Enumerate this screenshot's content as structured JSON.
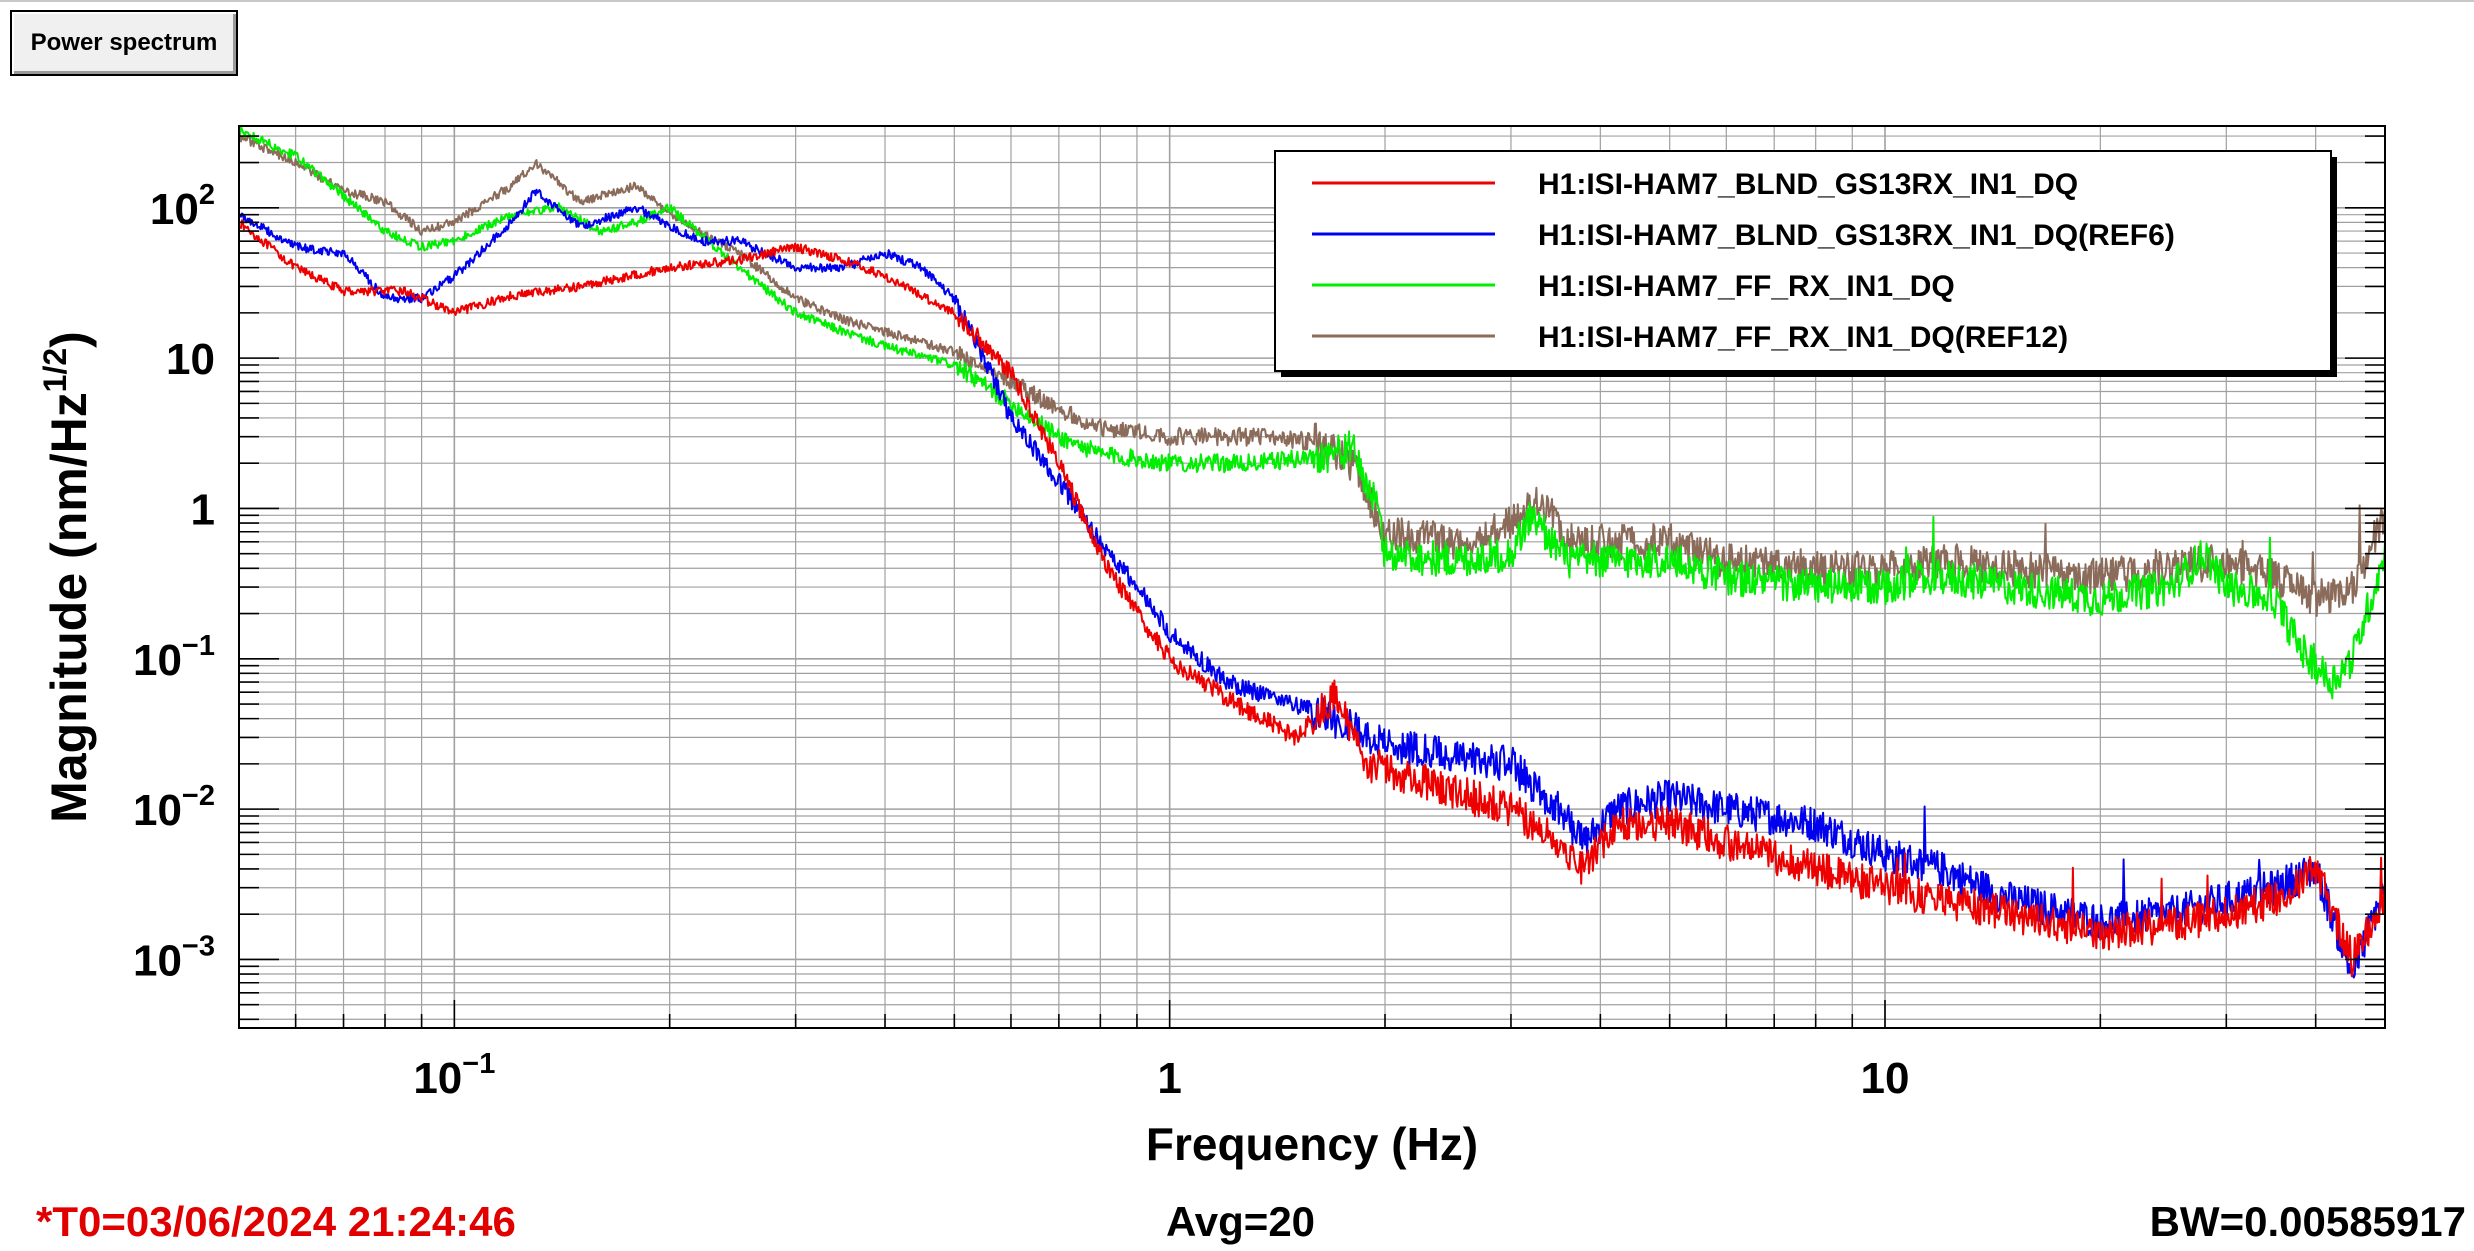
{
  "tab": {
    "label": "Power spectrum"
  },
  "status": {
    "t0": "*T0=03/06/2024 21:24:46",
    "avg": "Avg=20",
    "bw": "BW=0.00585917"
  },
  "colors": {
    "red": "#ee0000",
    "blue": "#0000ee",
    "green": "#00ee00",
    "brown": "#8b6b5a"
  },
  "chart_data": {
    "type": "line",
    "xlabel": "Frequency (Hz)",
    "ylabel": "Magnitude (nm/Hz^1/2)",
    "xscale": "log",
    "yscale": "log",
    "xlim": [
      0.05,
      50
    ],
    "ylim": [
      0.00035,
      350
    ],
    "grid": true,
    "legend_position": "top-right",
    "x_ticks": [
      {
        "value": 0.1,
        "base": "10",
        "exp": "−1"
      },
      {
        "value": 1,
        "base": "1",
        "exp": ""
      },
      {
        "value": 10,
        "base": "10",
        "exp": ""
      }
    ],
    "y_ticks": [
      {
        "value": 100,
        "base": "10",
        "exp": "2"
      },
      {
        "value": 10,
        "base": "10",
        "exp": ""
      },
      {
        "value": 1,
        "base": "1",
        "exp": ""
      },
      {
        "value": 0.1,
        "base": "10",
        "exp": "−1"
      },
      {
        "value": 0.01,
        "base": "10",
        "exp": "−2"
      },
      {
        "value": 0.001,
        "base": "10",
        "exp": "−3"
      }
    ],
    "series": [
      {
        "name": "H1:ISI-HAM7_BLND_GS13RX_IN1_DQ",
        "color": "#ee0000",
        "points": [
          [
            0.05,
            80
          ],
          [
            0.06,
            40
          ],
          [
            0.07,
            28
          ],
          [
            0.085,
            28
          ],
          [
            0.1,
            20
          ],
          [
            0.12,
            26
          ],
          [
            0.15,
            30
          ],
          [
            0.2,
            40
          ],
          [
            0.25,
            45
          ],
          [
            0.3,
            55
          ],
          [
            0.35,
            45
          ],
          [
            0.4,
            35
          ],
          [
            0.5,
            20
          ],
          [
            0.6,
            8
          ],
          [
            0.7,
            2
          ],
          [
            0.8,
            0.5
          ],
          [
            0.9,
            0.2
          ],
          [
            1,
            0.1
          ],
          [
            1.2,
            0.055
          ],
          [
            1.5,
            0.03
          ],
          [
            1.7,
            0.055
          ],
          [
            1.9,
            0.02
          ],
          [
            2.5,
            0.013
          ],
          [
            3,
            0.01
          ],
          [
            3.5,
            0.006
          ],
          [
            3.8,
            0.004
          ],
          [
            4.2,
            0.008
          ],
          [
            5,
            0.008
          ],
          [
            6,
            0.006
          ],
          [
            8,
            0.004
          ],
          [
            10,
            0.003
          ],
          [
            12,
            0.0025
          ],
          [
            15,
            0.002
          ],
          [
            20,
            0.0015
          ],
          [
            25,
            0.0017
          ],
          [
            30,
            0.002
          ],
          [
            35,
            0.0025
          ],
          [
            40,
            0.004
          ],
          [
            45,
            0.001
          ],
          [
            50,
            0.0025
          ]
        ]
      },
      {
        "name": "H1:ISI-HAM7_BLND_GS13RX_IN1_DQ(REF6)",
        "color": "#0000ee",
        "points": [
          [
            0.05,
            90
          ],
          [
            0.06,
            55
          ],
          [
            0.07,
            50
          ],
          [
            0.08,
            25
          ],
          [
            0.09,
            25
          ],
          [
            0.1,
            35
          ],
          [
            0.12,
            80
          ],
          [
            0.13,
            130
          ],
          [
            0.15,
            75
          ],
          [
            0.18,
            100
          ],
          [
            0.22,
            60
          ],
          [
            0.25,
            60
          ],
          [
            0.3,
            40
          ],
          [
            0.35,
            40
          ],
          [
            0.4,
            50
          ],
          [
            0.45,
            40
          ],
          [
            0.5,
            25
          ],
          [
            0.55,
            10
          ],
          [
            0.6,
            4
          ],
          [
            0.7,
            1.5
          ],
          [
            0.8,
            0.6
          ],
          [
            0.9,
            0.3
          ],
          [
            1,
            0.15
          ],
          [
            1.2,
            0.07
          ],
          [
            1.5,
            0.05
          ],
          [
            2,
            0.028
          ],
          [
            2.5,
            0.022
          ],
          [
            3,
            0.02
          ],
          [
            3.5,
            0.01
          ],
          [
            3.8,
            0.006
          ],
          [
            4.2,
            0.01
          ],
          [
            5,
            0.012
          ],
          [
            6,
            0.01
          ],
          [
            8,
            0.008
          ],
          [
            10,
            0.005
          ],
          [
            12,
            0.004
          ],
          [
            15,
            0.0025
          ],
          [
            20,
            0.0018
          ],
          [
            25,
            0.002
          ],
          [
            30,
            0.0025
          ],
          [
            35,
            0.003
          ],
          [
            40,
            0.004
          ],
          [
            45,
            0.0008
          ],
          [
            50,
            0.003
          ]
        ]
      },
      {
        "name": "H1:ISI-HAM7_FF_RX_IN1_DQ",
        "color": "#00ee00",
        "points": [
          [
            0.05,
            330
          ],
          [
            0.06,
            220
          ],
          [
            0.07,
            120
          ],
          [
            0.08,
            70
          ],
          [
            0.09,
            55
          ],
          [
            0.1,
            60
          ],
          [
            0.12,
            90
          ],
          [
            0.14,
            100
          ],
          [
            0.16,
            70
          ],
          [
            0.18,
            80
          ],
          [
            0.2,
            100
          ],
          [
            0.25,
            40
          ],
          [
            0.3,
            20
          ],
          [
            0.35,
            15
          ],
          [
            0.4,
            12
          ],
          [
            0.5,
            9
          ],
          [
            0.6,
            5
          ],
          [
            0.7,
            3
          ],
          [
            0.8,
            2.3
          ],
          [
            1,
            2
          ],
          [
            1.3,
            2
          ],
          [
            1.6,
            2.2
          ],
          [
            1.8,
            2.5
          ],
          [
            1.95,
            1
          ],
          [
            2,
            0.5
          ],
          [
            2.5,
            0.45
          ],
          [
            3,
            0.5
          ],
          [
            3.2,
            0.9
          ],
          [
            3.6,
            0.45
          ],
          [
            4,
            0.45
          ],
          [
            5,
            0.45
          ],
          [
            6,
            0.35
          ],
          [
            8,
            0.3
          ],
          [
            10,
            0.3
          ],
          [
            12,
            0.35
          ],
          [
            15,
            0.3
          ],
          [
            20,
            0.25
          ],
          [
            25,
            0.3
          ],
          [
            28,
            0.5
          ],
          [
            30,
            0.3
          ],
          [
            35,
            0.25
          ],
          [
            38,
            0.12
          ],
          [
            42,
            0.07
          ],
          [
            45,
            0.1
          ],
          [
            50,
            0.5
          ]
        ]
      },
      {
        "name": "H1:ISI-HAM7_FF_RX_IN1_DQ(REF12)",
        "color": "#8b6b5a",
        "points": [
          [
            0.05,
            300
          ],
          [
            0.06,
            200
          ],
          [
            0.07,
            130
          ],
          [
            0.08,
            110
          ],
          [
            0.09,
            70
          ],
          [
            0.1,
            80
          ],
          [
            0.12,
            140
          ],
          [
            0.13,
            200
          ],
          [
            0.15,
            110
          ],
          [
            0.18,
            140
          ],
          [
            0.2,
            90
          ],
          [
            0.25,
            50
          ],
          [
            0.3,
            25
          ],
          [
            0.35,
            18
          ],
          [
            0.4,
            15
          ],
          [
            0.5,
            11
          ],
          [
            0.6,
            7
          ],
          [
            0.7,
            4.5
          ],
          [
            0.8,
            3.5
          ],
          [
            1,
            3
          ],
          [
            1.3,
            3
          ],
          [
            1.6,
            2.8
          ],
          [
            1.8,
            2
          ],
          [
            2,
            0.7
          ],
          [
            2.5,
            0.6
          ],
          [
            3,
            0.8
          ],
          [
            3.3,
            1.2
          ],
          [
            3.6,
            0.6
          ],
          [
            4,
            0.6
          ],
          [
            5,
            0.6
          ],
          [
            6,
            0.45
          ],
          [
            8,
            0.4
          ],
          [
            10,
            0.4
          ],
          [
            12,
            0.45
          ],
          [
            15,
            0.4
          ],
          [
            20,
            0.35
          ],
          [
            25,
            0.4
          ],
          [
            30,
            0.45
          ],
          [
            35,
            0.35
          ],
          [
            40,
            0.25
          ],
          [
            45,
            0.3
          ],
          [
            50,
            0.9
          ]
        ]
      }
    ]
  }
}
